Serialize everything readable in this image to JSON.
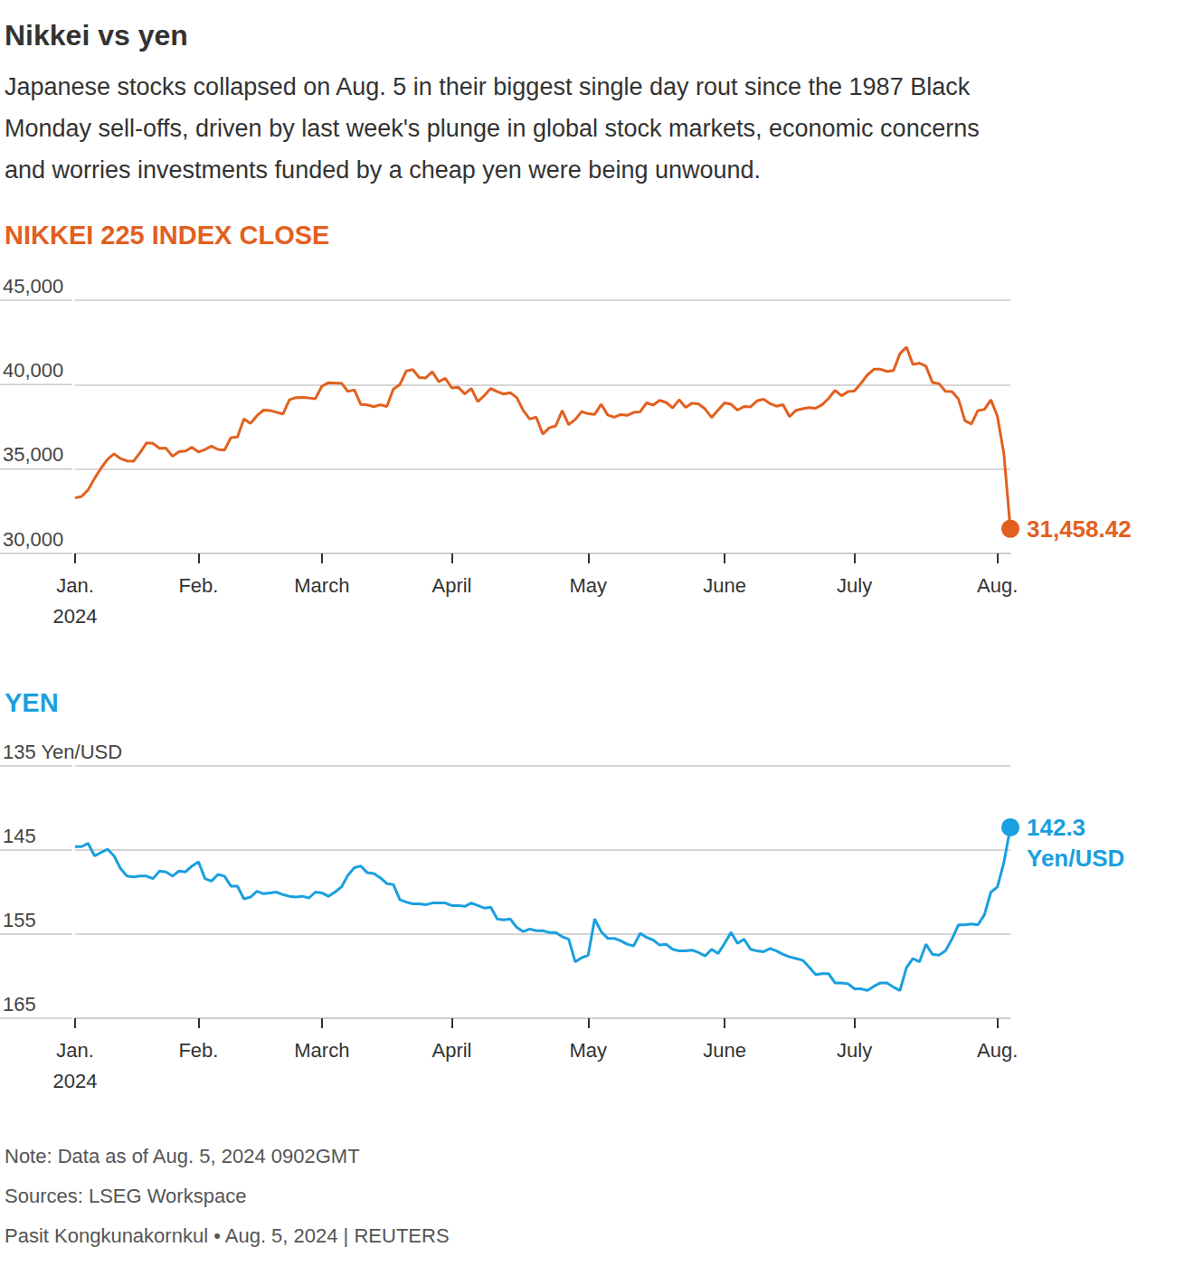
{
  "title": "Nikkei vs yen",
  "subtitle": "Japanese stocks collapsed on Aug. 5 in their biggest single day rout since the 1987 Black\nMonday sell-offs, driven by last week's plunge in global stock markets, economic concerns\nand worries investments funded by a cheap yen were being unwound.",
  "notes": [
    "Note: Data as of Aug. 5, 2024 0902GMT",
    "Sources: LSEG Workspace",
    "Pasit Kongkunakornkul • Aug. 5, 2024 | REUTERS"
  ],
  "chart_data": [
    {
      "type": "line",
      "title": "NIKKEI 225 INDEX CLOSE",
      "color": "#e2601f",
      "grid": true,
      "categories": [
        "Jan.\n2024",
        null,
        null,
        null,
        null,
        null,
        null,
        null,
        null,
        null,
        null,
        null,
        null,
        null,
        null,
        null,
        null,
        null,
        null,
        "Feb.",
        null,
        null,
        null,
        null,
        null,
        null,
        null,
        null,
        null,
        null,
        null,
        null,
        null,
        null,
        null,
        null,
        null,
        null,
        "March",
        null,
        null,
        null,
        null,
        null,
        null,
        null,
        null,
        null,
        null,
        null,
        null,
        null,
        null,
        null,
        null,
        null,
        null,
        null,
        "April",
        null,
        null,
        null,
        null,
        null,
        null,
        null,
        null,
        null,
        null,
        null,
        null,
        null,
        null,
        null,
        null,
        null,
        null,
        null,
        null,
        "May",
        null,
        null,
        null,
        null,
        null,
        null,
        null,
        null,
        null,
        null,
        null,
        null,
        null,
        null,
        null,
        null,
        null,
        null,
        null,
        null,
        "June",
        null,
        null,
        null,
        null,
        null,
        null,
        null,
        null,
        null,
        null,
        null,
        null,
        null,
        null,
        null,
        null,
        null,
        null,
        null,
        "July",
        null,
        null,
        null,
        null,
        null,
        null,
        null,
        null,
        null,
        null,
        null,
        null,
        null,
        null,
        null,
        null,
        null,
        null,
        null,
        null,
        null,
        "Aug.",
        null,
        null
      ],
      "values": [
        33288,
        33377,
        33763,
        34441,
        35049,
        35577,
        35901,
        35619,
        35477,
        35466,
        35963,
        36546,
        36517,
        36226,
        36236,
        35751,
        36026,
        36065,
        36286,
        36011,
        36158,
        36354,
        36160,
        36119,
        36863,
        36897,
        37963,
        37703,
        38157,
        38487,
        38470,
        38363,
        38262,
        39098,
        39233,
        39239,
        39208,
        39166,
        39910,
        40109,
        40097,
        40090,
        39598,
        39688,
        38820,
        38797,
        38695,
        38807,
        38707,
        39740,
        40003,
        40815,
        40888,
        40414,
        40398,
        40762,
        40168,
        40369,
        39803,
        39838,
        39451,
        39773,
        38992,
        39347,
        39773,
        39581,
        39442,
        39523,
        39232,
        38471,
        37962,
        38079,
        37068,
        37438,
        37552,
        38460,
        37628,
        37934,
        38406,
        38274,
        38236,
        38835,
        38202,
        38073,
        38229,
        38179,
        38356,
        38385,
        38920,
        38787,
        39069,
        38946,
        38617,
        39103,
        38646,
        38900,
        38855,
        38556,
        38054,
        38487,
        38923,
        38837,
        38490,
        38703,
        38683,
        39038,
        39134,
        38876,
        38720,
        38814,
        38102,
        38482,
        38570,
        38633,
        38596,
        38804,
        39173,
        39667,
        39341,
        39583,
        39631,
        40074,
        40580,
        40913,
        40912,
        40780,
        40831,
        41831,
        42224,
        41190,
        41275,
        41097,
        40126,
        40063,
        39599,
        39594,
        39154,
        37869,
        37667,
        38468,
        38525,
        39101,
        38126,
        35909,
        31458.42
      ],
      "end_label": "31,458.42",
      "ylim": [
        30000,
        45000
      ],
      "yticks": [
        {
          "value": 30000,
          "label": "30,000"
        },
        {
          "value": 35000,
          "label": "35,000"
        },
        {
          "value": 40000,
          "label": "40,000"
        },
        {
          "value": 45000,
          "label": "45,000"
        }
      ]
    },
    {
      "type": "line",
      "title": "YEN",
      "color": "#1a9fe0",
      "grid": true,
      "categories": [
        "Jan.\n2024",
        null,
        null,
        null,
        null,
        null,
        null,
        null,
        null,
        null,
        null,
        null,
        null,
        null,
        null,
        null,
        null,
        null,
        null,
        "Feb.",
        null,
        null,
        null,
        null,
        null,
        null,
        null,
        null,
        null,
        null,
        null,
        null,
        null,
        null,
        null,
        null,
        null,
        null,
        "March",
        null,
        null,
        null,
        null,
        null,
        null,
        null,
        null,
        null,
        null,
        null,
        null,
        null,
        null,
        null,
        null,
        null,
        null,
        null,
        "April",
        null,
        null,
        null,
        null,
        null,
        null,
        null,
        null,
        null,
        null,
        null,
        null,
        null,
        null,
        null,
        null,
        null,
        null,
        null,
        null,
        "May",
        null,
        null,
        null,
        null,
        null,
        null,
        null,
        null,
        null,
        null,
        null,
        null,
        null,
        null,
        null,
        null,
        null,
        null,
        null,
        null,
        "June",
        null,
        null,
        null,
        null,
        null,
        null,
        null,
        null,
        null,
        null,
        null,
        null,
        null,
        null,
        null,
        null,
        null,
        null,
        null,
        "July",
        null,
        null,
        null,
        null,
        null,
        null,
        null,
        null,
        null,
        null,
        null,
        null,
        null,
        null,
        null,
        null,
        null,
        null,
        null,
        null,
        null,
        "Aug.",
        null,
        null
      ],
      "values": [
        144.6,
        144.6,
        144.2,
        145.7,
        145.3,
        144.9,
        145.7,
        147.2,
        148.1,
        148.2,
        148.1,
        148.1,
        148.4,
        147.5,
        147.6,
        148.1,
        147.5,
        147.6,
        146.9,
        146.4,
        148.4,
        148.7,
        147.9,
        148.1,
        149.3,
        149.3,
        150.8,
        150.6,
        149.9,
        150.2,
        150.1,
        150.0,
        150.3,
        150.5,
        150.6,
        150.5,
        150.7,
        150.0,
        150.1,
        150.5,
        150.0,
        149.4,
        148.0,
        147.1,
        146.9,
        147.7,
        147.8,
        148.3,
        149.0,
        149.1,
        150.9,
        151.2,
        151.4,
        151.4,
        151.5,
        151.3,
        151.3,
        151.3,
        151.6,
        151.6,
        151.7,
        151.3,
        151.6,
        151.9,
        151.8,
        153.2,
        153.3,
        153.2,
        154.2,
        154.7,
        154.4,
        154.6,
        154.6,
        154.8,
        154.8,
        155.3,
        155.6,
        158.3,
        157.8,
        157.5,
        153.2,
        154.7,
        155.5,
        155.5,
        155.8,
        156.2,
        156.4,
        154.9,
        155.4,
        155.7,
        156.3,
        156.2,
        156.8,
        157.0,
        157.0,
        156.9,
        157.2,
        157.6,
        156.8,
        157.3,
        156.1,
        154.8,
        156.1,
        155.6,
        156.8,
        157.0,
        157.1,
        156.7,
        157.0,
        157.4,
        157.7,
        157.9,
        158.1,
        158.9,
        159.8,
        159.7,
        159.7,
        160.8,
        160.8,
        160.9,
        161.5,
        161.5,
        161.7,
        161.2,
        160.8,
        160.8,
        161.3,
        161.7,
        159.0,
        157.9,
        158.3,
        156.2,
        157.4,
        157.5,
        157.0,
        155.6,
        153.9,
        153.9,
        153.8,
        153.9,
        152.7,
        150.0,
        149.4,
        146.5,
        142.3
      ],
      "end_label": "142.3\nYen/USD",
      "ylim": [
        165,
        135
      ],
      "yticks": [
        {
          "value": 135,
          "label": "135 Yen/USD"
        },
        145,
        155,
        165
      ]
    }
  ]
}
